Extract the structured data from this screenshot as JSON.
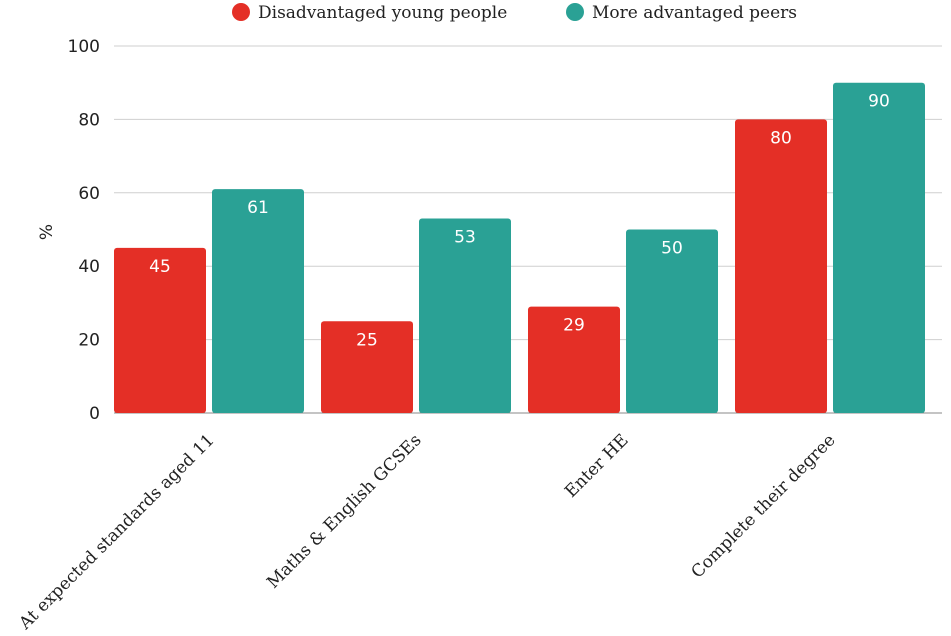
{
  "chart_data": {
    "type": "bar",
    "title": "",
    "xlabel": "",
    "ylabel": "%",
    "ylim": [
      0,
      100
    ],
    "yticks": [
      0,
      20,
      40,
      60,
      80,
      100
    ],
    "grid": true,
    "legend_position": "top",
    "categories": [
      "At expected standards aged 11",
      "Maths & English GCSEs",
      "Enter HE",
      "Complete their degree"
    ],
    "series": [
      {
        "name": "Disadvantaged young people",
        "color": "#e42f26",
        "values": [
          45,
          25,
          29,
          80
        ]
      },
      {
        "name": "More advantaged peers",
        "color": "#2aa195",
        "values": [
          61,
          53,
          50,
          90
        ]
      }
    ]
  }
}
